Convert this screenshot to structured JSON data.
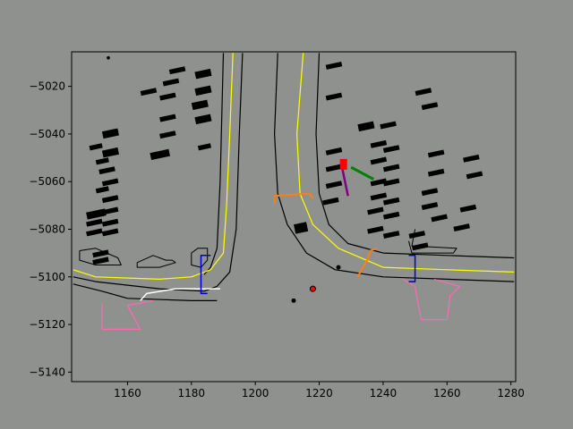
{
  "chart_data": {
    "type": "scatter",
    "title": "",
    "xlabel": "",
    "ylabel": "",
    "xlim": [
      1142.5,
      1281.5
    ],
    "ylim": [
      -5144,
      -5503.5
    ],
    "ylim_note_ignore": "",
    "x_ticks": [
      1160,
      1180,
      1200,
      1220,
      1240,
      1260,
      1280
    ],
    "y_ticks": [
      -5020,
      -5040,
      -5060,
      -5080,
      -5100,
      -5120,
      -5140
    ],
    "grid": false,
    "colors": {
      "background": "#8f918e",
      "road_edge": "#000000",
      "lane_center": "#ffff00",
      "crosswalk": "#ff69b4",
      "stop_line": "#0000cd",
      "ego_path": "#ff7f0e",
      "agent_green": "#008000",
      "agent_purple": "#800080",
      "agent_red": "#ff0000",
      "boundary_white": "#ffffff"
    },
    "series": []
  }
}
